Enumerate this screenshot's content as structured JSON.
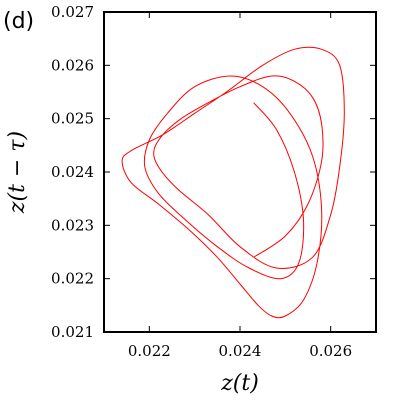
{
  "chart_data": {
    "type": "line",
    "panel_label": "(d)",
    "xlabel": "z(t)",
    "ylabel": "z(t − τ)",
    "xlim": [
      0.021,
      0.027
    ],
    "ylim": [
      0.021,
      0.027
    ],
    "x_ticks": [
      "0.022",
      "0.024",
      "0.026"
    ],
    "y_ticks": [
      "0.021",
      "0.022",
      "0.023",
      "0.024",
      "0.025",
      "0.026",
      "0.027"
    ],
    "grid": false,
    "legend": "none",
    "series": [
      {
        "color": "#ff0000",
        "x": [
          0.0243,
          0.025,
          0.0255,
          0.0258,
          0.0258,
          0.0256,
          0.0252,
          0.0247,
          0.024,
          0.0233,
          0.0227,
          0.0223,
          0.0221,
          0.0222,
          0.0226,
          0.0233,
          0.024,
          0.0248,
          0.0256,
          0.026,
          0.0262,
          0.0263,
          0.0262,
          0.0258,
          0.0252,
          0.0245,
          0.0237,
          0.023,
          0.0223,
          0.0216,
          0.0214,
          0.0216,
          0.0222,
          0.0229,
          0.0235,
          0.024,
          0.0244,
          0.0247,
          0.025,
          0.0254,
          0.0257,
          0.0258,
          0.0256,
          0.0251,
          0.0245,
          0.0238,
          0.023,
          0.0224,
          0.022,
          0.0219,
          0.0222,
          0.0228,
          0.0235,
          0.0242,
          0.0249,
          0.0253,
          0.0254,
          0.0252,
          0.0248,
          0.0243
        ],
        "y": [
          0.0224,
          0.0228,
          0.0234,
          0.0242,
          0.0249,
          0.0254,
          0.0257,
          0.0258,
          0.0256,
          0.0253,
          0.025,
          0.0247,
          0.0244,
          0.0241,
          0.0237,
          0.0232,
          0.0226,
          0.0222,
          0.0224,
          0.0232,
          0.0241,
          0.0251,
          0.026,
          0.0263,
          0.0263,
          0.026,
          0.0255,
          0.0251,
          0.0247,
          0.0244,
          0.0242,
          0.0238,
          0.0234,
          0.0229,
          0.0224,
          0.0219,
          0.0215,
          0.0213,
          0.0213,
          0.0216,
          0.0223,
          0.0233,
          0.0243,
          0.0251,
          0.0256,
          0.0258,
          0.0256,
          0.0251,
          0.0246,
          0.0241,
          0.0236,
          0.0231,
          0.0226,
          0.0222,
          0.022,
          0.0223,
          0.0231,
          0.024,
          0.0248,
          0.0253
        ]
      }
    ]
  }
}
